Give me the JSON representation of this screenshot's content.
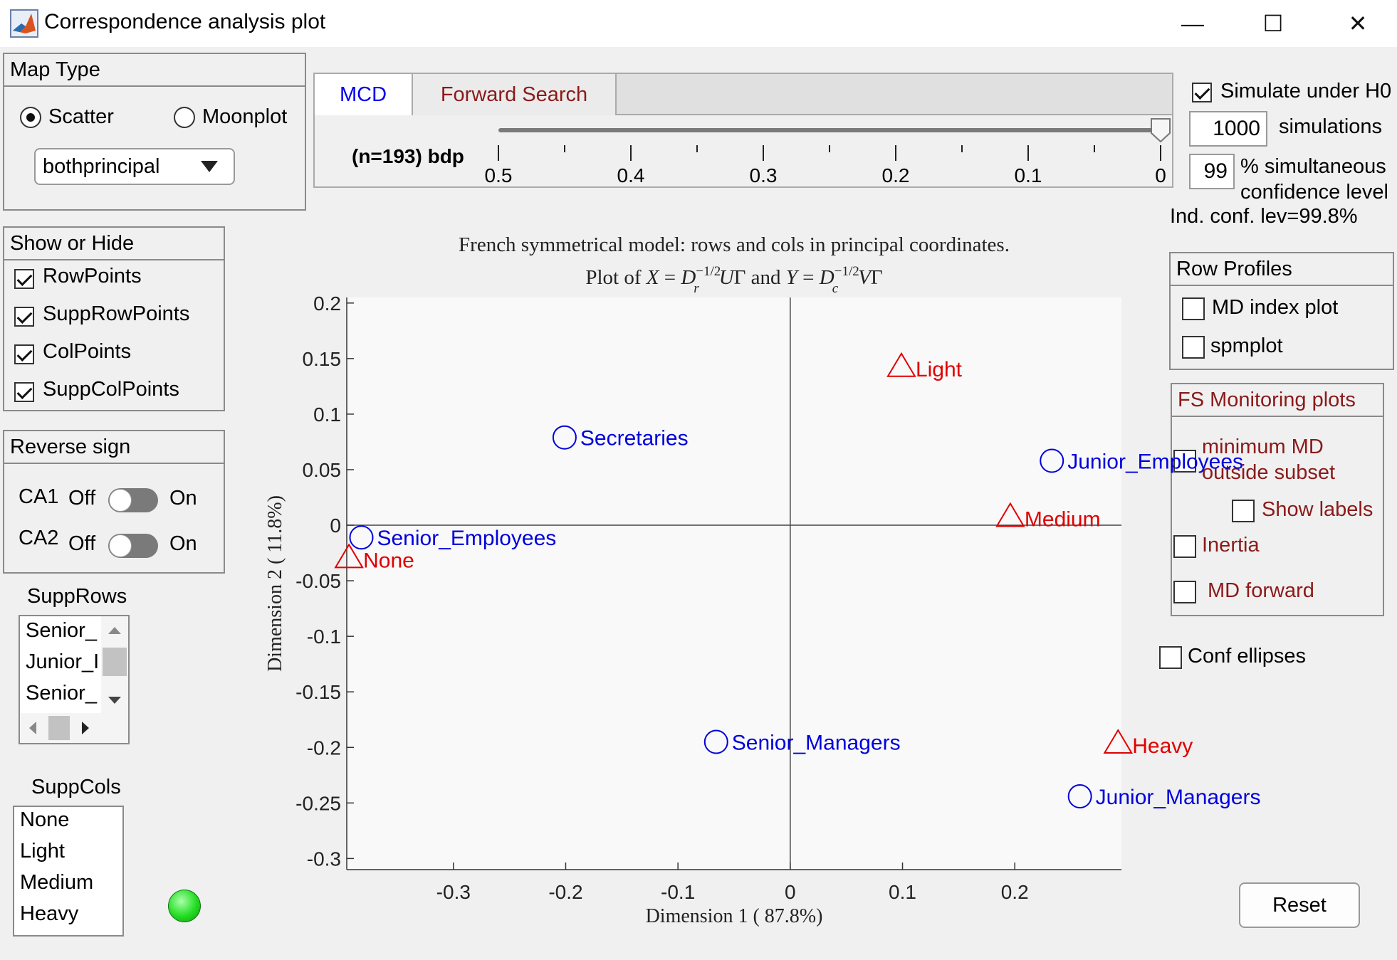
{
  "window": {
    "title": "Correspondence analysis plot",
    "minimize": "—",
    "maximize": "☐",
    "close": "✕"
  },
  "map_type": {
    "title": "Map Type",
    "scatter_label": "Scatter",
    "moonplot_label": "Moonplot",
    "selected": "Scatter",
    "dropdown_value": "bothprincipal"
  },
  "show_hide": {
    "title": "Show or Hide",
    "items": [
      {
        "label": "RowPoints",
        "checked": true
      },
      {
        "label": "SuppRowPoints",
        "checked": true
      },
      {
        "label": "ColPoints",
        "checked": true
      },
      {
        "label": "SuppColPoints",
        "checked": true
      }
    ]
  },
  "reverse_sign": {
    "title": "Reverse sign",
    "ca1": "CA1",
    "ca2": "CA2",
    "off": "Off",
    "on": "On"
  },
  "supp_rows": {
    "title": "SuppRows",
    "items": [
      "Senior_",
      "Junior_I",
      "Senior_"
    ]
  },
  "supp_cols": {
    "title": "SuppCols",
    "items": [
      "None",
      "Light",
      "Medium",
      "Heavy"
    ]
  },
  "tabs": {
    "mcd": "MCD",
    "forward_search": "Forward Search",
    "active": "MCD"
  },
  "bdp": {
    "label": "(n=193) bdp",
    "ticks": [
      "0.5",
      "0.4",
      "0.3",
      "0.2",
      "0.1",
      "0"
    ],
    "value": 0
  },
  "simulation": {
    "simulate_label": "Simulate under H0",
    "simulate_checked": true,
    "simulations_value": "1000",
    "simulations_label": "simulations",
    "conf_value": "99",
    "conf_label_1": "% simultaneous",
    "conf_label_2": "confidence  level",
    "ind_conf": "Ind. conf. lev=99.8%"
  },
  "row_profiles": {
    "title": "Row Profiles",
    "md_index": "MD index plot",
    "spmplot": "spmplot"
  },
  "fs_monitoring": {
    "title": "FS Monitoring plots",
    "min_md_1": "minimum MD",
    "min_md_2": "outside subset",
    "show_labels": "Show labels",
    "inertia": "Inertia",
    "md_forward": "MD forward"
  },
  "conf_ellipses": "Conf ellipses",
  "reset": "Reset",
  "colors": {
    "row": "#0000dd",
    "col": "#e00000",
    "status_led": "#22dd22",
    "tab_inactive_text": "#8b1a1a"
  },
  "chart_data": {
    "type": "scatter",
    "title_line1": "French symmetrical model: rows and cols in principal coordinates.",
    "title_line2": "Plot of X = D_r^{-1/2} U Γ and Y = D_c^{-1/2} V Γ",
    "xlabel": "Dimension  1 ( 87.8%)",
    "ylabel": "Dimension  2 ( 11.8%)",
    "xlim": [
      -0.395,
      0.295
    ],
    "ylim": [
      -0.31,
      0.205
    ],
    "xticks": [
      -0.3,
      -0.2,
      -0.1,
      0,
      0.1,
      0.2
    ],
    "xtick_labels": [
      "-0.3",
      "-0.2",
      "-0.1",
      "0",
      "0.1",
      "0.2"
    ],
    "yticks": [
      0.2,
      0.15,
      0.1,
      0.05,
      0,
      -0.05,
      -0.1,
      -0.15,
      -0.2,
      -0.25,
      -0.3
    ],
    "ytick_labels": [
      "0.2",
      "0.15",
      "0.1",
      "0.05",
      "0",
      "-0.05",
      "-0.1",
      "-0.15",
      "-0.2",
      "-0.25",
      "-0.3"
    ],
    "series": [
      {
        "name": "rows",
        "marker": "circle",
        "points": [
          {
            "label": "Secretaries",
            "x": -0.201,
            "y": 0.079
          },
          {
            "label": "Junior_Employees",
            "x": 0.233,
            "y": 0.058
          },
          {
            "label": "Senior_Employees",
            "x": -0.382,
            "y": -0.011
          },
          {
            "label": "Senior_Managers",
            "x": -0.066,
            "y": -0.195
          },
          {
            "label": "Junior_Managers",
            "x": 0.258,
            "y": -0.244
          }
        ]
      },
      {
        "name": "cols",
        "marker": "triangle",
        "points": [
          {
            "label": "Light",
            "x": 0.099,
            "y": 0.143
          },
          {
            "label": "Medium",
            "x": 0.196,
            "y": 0.008
          },
          {
            "label": "None",
            "x": -0.393,
            "y": -0.029
          },
          {
            "label": "Heavy",
            "x": 0.292,
            "y": -0.196
          }
        ]
      }
    ]
  }
}
